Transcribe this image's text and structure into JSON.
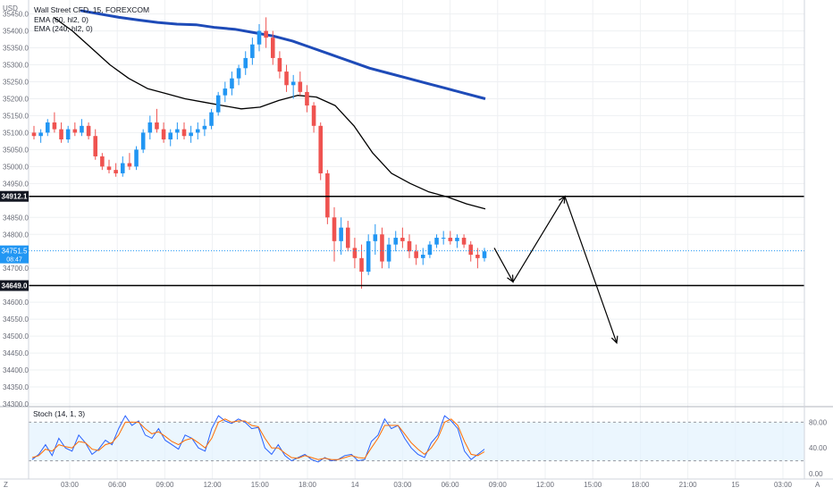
{
  "header": {
    "title": "Wall Street CFD, 15, FOREXCOM",
    "indicators": [
      "EMA (60, hl2, 0)",
      "EMA (240, hl2, 0)"
    ]
  },
  "price_axis": {
    "currency": "USD",
    "ticks": [
      "35450.0",
      "35400.0",
      "35350.0",
      "35300.0",
      "35250.0",
      "35200.0",
      "35150.0",
      "35100.0",
      "35050.0",
      "35000.0",
      "34950.0",
      "34850.0",
      "34800.0",
      "34700.0",
      "34600.0",
      "34550.0",
      "34500.0",
      "34450.0",
      "34400.0",
      "34350.0",
      "34300.0"
    ]
  },
  "price_labels": {
    "upper_level": "34912.1",
    "last_price": "34751.5",
    "countdown": "08:47",
    "lower_level": "34649.0"
  },
  "time_axis": {
    "ticks": [
      "03:00",
      "06:00",
      "09:00",
      "12:00",
      "15:00",
      "18:00",
      "14",
      "03:00",
      "06:00",
      "09:00",
      "12:00",
      "15:00",
      "18:00",
      "21:00",
      "15",
      "03:00"
    ]
  },
  "stoch": {
    "label": "Stoch (14, 1, 3)",
    "ticks": [
      "80.00",
      "40.00",
      "0.00"
    ]
  },
  "chart_data": {
    "type": "candlestick",
    "symbol": "Wall Street CFD",
    "timeframe": "15",
    "source": "FOREXCOM",
    "ylim": [
      34300,
      35470
    ],
    "candles": [
      [
        35100,
        35120,
        35080,
        35090
      ],
      [
        35090,
        35110,
        35070,
        35100
      ],
      [
        35100,
        35140,
        35090,
        35130
      ],
      [
        35130,
        35160,
        35100,
        35110
      ],
      [
        35110,
        35130,
        35070,
        35080
      ],
      [
        35080,
        35120,
        35070,
        35110
      ],
      [
        35110,
        35130,
        35090,
        35100
      ],
      [
        35100,
        35140,
        35090,
        35120
      ],
      [
        35120,
        35130,
        35080,
        35090
      ],
      [
        35090,
        35110,
        35020,
        35030
      ],
      [
        35030,
        35040,
        34990,
        35000
      ],
      [
        35000,
        35020,
        34980,
        34990
      ],
      [
        34990,
        35010,
        34970,
        34980
      ],
      [
        34980,
        35030,
        34970,
        35010
      ],
      [
        35010,
        35040,
        34990,
        35000
      ],
      [
        35000,
        35060,
        34990,
        35050
      ],
      [
        35050,
        35110,
        35040,
        35100
      ],
      [
        35100,
        35150,
        35080,
        35130
      ],
      [
        35130,
        35170,
        35100,
        35110
      ],
      [
        35110,
        35130,
        35070,
        35080
      ],
      [
        35080,
        35110,
        35060,
        35100
      ],
      [
        35100,
        35130,
        35080,
        35110
      ],
      [
        35110,
        35130,
        35080,
        35090
      ],
      [
        35090,
        35120,
        35070,
        35100
      ],
      [
        35100,
        35130,
        35080,
        35110
      ],
      [
        35110,
        35140,
        35090,
        35120
      ],
      [
        35120,
        35170,
        35110,
        35160
      ],
      [
        35160,
        35220,
        35150,
        35210
      ],
      [
        35210,
        35250,
        35190,
        35230
      ],
      [
        35230,
        35280,
        35210,
        35260
      ],
      [
        35260,
        35300,
        35240,
        35290
      ],
      [
        35290,
        35340,
        35270,
        35320
      ],
      [
        35320,
        35380,
        35300,
        35360
      ],
      [
        35360,
        35420,
        35340,
        35400
      ],
      [
        35400,
        35440,
        35350,
        35380
      ],
      [
        35380,
        35400,
        35300,
        35320
      ],
      [
        35320,
        35340,
        35260,
        35280
      ],
      [
        35280,
        35300,
        35220,
        35240
      ],
      [
        35240,
        35270,
        35200,
        35250
      ],
      [
        35250,
        35280,
        35210,
        35220
      ],
      [
        35220,
        35240,
        35160,
        35180
      ],
      [
        35180,
        35190,
        35100,
        35120
      ],
      [
        35120,
        35130,
        34960,
        34980
      ],
      [
        34980,
        34990,
        34830,
        34850
      ],
      [
        34850,
        34880,
        34720,
        34780
      ],
      [
        34780,
        34850,
        34740,
        34820
      ],
      [
        34820,
        34840,
        34750,
        34760
      ],
      [
        34760,
        34790,
        34700,
        34730
      ],
      [
        34730,
        34770,
        34640,
        34690
      ],
      [
        34690,
        34800,
        34680,
        34780
      ],
      [
        34780,
        34830,
        34740,
        34800
      ],
      [
        34800,
        34820,
        34700,
        34720
      ],
      [
        34720,
        34790,
        34700,
        34770
      ],
      [
        34770,
        34810,
        34750,
        34790
      ],
      [
        34790,
        34820,
        34760,
        34780
      ],
      [
        34780,
        34800,
        34730,
        34750
      ],
      [
        34750,
        34770,
        34710,
        34730
      ],
      [
        34730,
        34760,
        34710,
        34740
      ],
      [
        34740,
        34780,
        34730,
        34770
      ],
      [
        34770,
        34800,
        34760,
        34790
      ],
      [
        34790,
        34810,
        34770,
        34790
      ],
      [
        34790,
        34810,
        34770,
        34780
      ],
      [
        34780,
        34800,
        34760,
        34790
      ],
      [
        34790,
        34800,
        34760,
        34770
      ],
      [
        34770,
        34780,
        34720,
        34740
      ],
      [
        34740,
        34760,
        34700,
        34730
      ],
      [
        34730,
        34760,
        34720,
        34750
      ]
    ],
    "series": [
      {
        "name": "EMA (60, hl2, 0)",
        "values": [
          35440,
          35400,
          35350,
          35300,
          35260,
          35230,
          35215,
          35200,
          35190,
          35180,
          35170,
          35175,
          35195,
          35210,
          35205,
          35180,
          35120,
          35040,
          34980,
          34950,
          34925,
          34910,
          34890,
          34875
        ]
      },
      {
        "name": "EMA (240, hl2, 0)",
        "values": [
          35460,
          35450,
          35440,
          35432,
          35425,
          35420,
          35418,
          35410,
          35405,
          35395,
          35385,
          35370,
          35350,
          35330,
          35310,
          35290,
          35275,
          35260,
          35245,
          35230,
          35215,
          35200
        ]
      }
    ],
    "horizontal_levels": [
      34912.1,
      34649.0
    ],
    "last_price": 34751.5,
    "projection": [
      34760,
      34660,
      34912,
      34480
    ],
    "stochastic": {
      "name": "Stoch (14, 1, 3)",
      "ylim": [
        0,
        100
      ],
      "bands": [
        20,
        80
      ],
      "k": [
        22,
        30,
        45,
        28,
        55,
        40,
        35,
        60,
        48,
        30,
        38,
        52,
        45,
        70,
        90,
        75,
        82,
        60,
        55,
        70,
        52,
        45,
        38,
        60,
        55,
        40,
        35,
        70,
        90,
        82,
        78,
        85,
        80,
        70,
        72,
        40,
        30,
        45,
        28,
        20,
        25,
        30,
        22,
        18,
        25,
        20,
        22,
        28,
        30,
        20,
        22,
        50,
        60,
        85,
        70,
        75,
        55,
        40,
        30,
        25,
        48,
        60,
        90,
        82,
        70,
        35,
        22,
        30,
        38
      ],
      "d": [
        25,
        28,
        38,
        35,
        45,
        42,
        40,
        50,
        48,
        38,
        36,
        45,
        48,
        60,
        80,
        80,
        80,
        70,
        62,
        65,
        58,
        50,
        45,
        52,
        55,
        48,
        40,
        55,
        80,
        85,
        80,
        82,
        82,
        75,
        73,
        55,
        40,
        40,
        32,
        25,
        24,
        28,
        25,
        22,
        24,
        22,
        22,
        25,
        28,
        25,
        24,
        40,
        55,
        75,
        75,
        75,
        62,
        48,
        38,
        30,
        40,
        55,
        80,
        85,
        75,
        50,
        30,
        28,
        34
      ]
    }
  }
}
